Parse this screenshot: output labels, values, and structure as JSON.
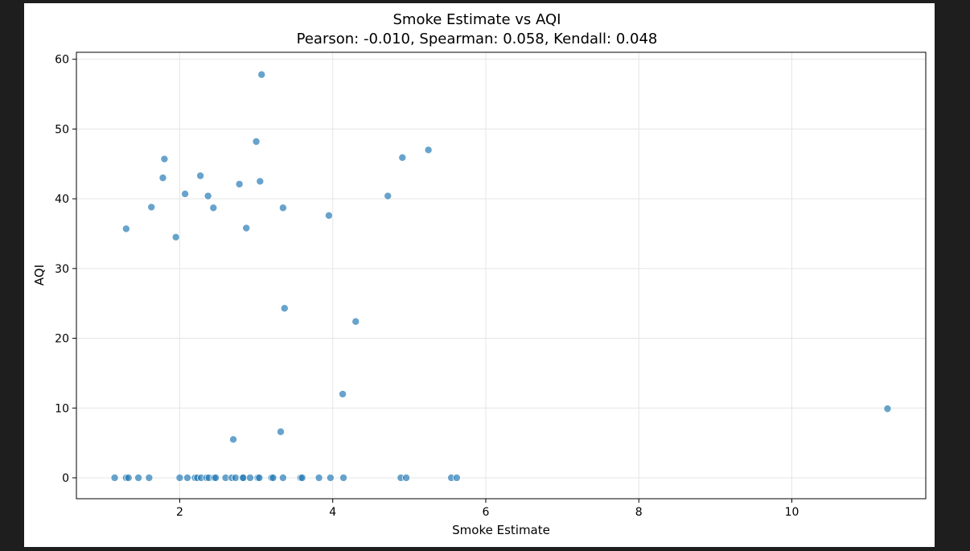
{
  "chart_data": {
    "type": "scatter",
    "title": "Smoke Estimate vs AQI",
    "subtitle": "Pearson: -0.010, Spearman: 0.058, Kendall: 0.048",
    "xlabel": "Smoke Estimate",
    "ylabel": "AQI",
    "xlim": [
      0.65,
      11.75
    ],
    "ylim": [
      -3.0,
      61.0
    ],
    "xticks": [
      2,
      4,
      6,
      8,
      10
    ],
    "yticks": [
      0,
      10,
      20,
      30,
      40,
      50,
      60
    ],
    "grid": true,
    "point_color": "#1f77b4",
    "x": [
      1.3,
      1.63,
      1.95,
      1.78,
      1.8,
      2.07,
      2.27,
      2.37,
      2.44,
      2.78,
      2.87,
      3.0,
      3.05,
      3.07,
      3.35,
      3.37,
      3.95,
      4.3,
      4.13,
      4.72,
      4.91,
      5.25,
      11.25,
      2.7,
      3.32,
      1.15,
      1.3,
      1.33,
      1.46,
      1.6,
      2.0,
      2.1,
      2.2,
      2.23,
      2.28,
      2.35,
      2.38,
      2.45,
      2.47,
      2.6,
      2.68,
      2.73,
      2.82,
      2.83,
      2.92,
      3.02,
      3.04,
      3.2,
      3.22,
      3.35,
      3.58,
      3.6,
      3.82,
      3.97,
      4.14,
      4.89,
      4.96,
      5.55,
      5.62
    ],
    "y": [
      35.7,
      38.8,
      34.5,
      43.0,
      45.7,
      40.7,
      43.3,
      40.4,
      38.7,
      42.1,
      35.8,
      48.2,
      42.5,
      57.8,
      38.7,
      24.3,
      37.6,
      22.4,
      12.0,
      40.4,
      45.9,
      47.0,
      9.9,
      5.5,
      6.6,
      0,
      0,
      0,
      0,
      0,
      0,
      0,
      0,
      0,
      0,
      0,
      0,
      0,
      0,
      0,
      0,
      0,
      0,
      0,
      0,
      0,
      0,
      0,
      0,
      0,
      0,
      0,
      0,
      0,
      0,
      0,
      0,
      0,
      0
    ]
  }
}
